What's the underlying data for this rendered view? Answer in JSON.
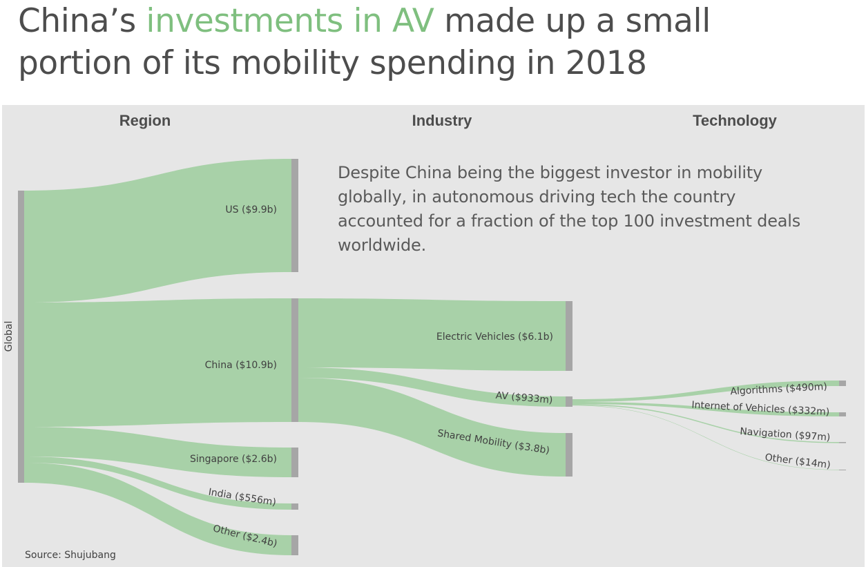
{
  "title": {
    "part1": "China’s ",
    "highlight": "investments in AV",
    "part2": " made up a small portion of its mobility spending in 2018"
  },
  "annotation": "Despite China being the biggest investor in mobility globally, in autonomous driving tech the country accounted for a fraction of the top 100 investment deals worldwide.",
  "source": "Source: Shujubang",
  "colors": {
    "link": "#a8d1a8",
    "node": "#a6a6a6",
    "highlight": "#7fbf7f",
    "panel": "#e6e6e6"
  },
  "chart_data": {
    "type": "sankey",
    "unit": "$",
    "columns": [
      "Region",
      "Industry",
      "Technology"
    ],
    "nodes": [
      {
        "id": "global",
        "label": "Global",
        "column": 0
      },
      {
        "id": "us",
        "label": "US ($9.9b)",
        "column": 1,
        "value_m": 9900
      },
      {
        "id": "china",
        "label": "China ($10.9b)",
        "column": 1,
        "value_m": 10900
      },
      {
        "id": "singapore",
        "label": "Singapore ($2.6b)",
        "column": 1,
        "value_m": 2600
      },
      {
        "id": "india",
        "label": "India ($556m)",
        "column": 1,
        "value_m": 556
      },
      {
        "id": "other_region",
        "label": "Other ($2.4b)",
        "column": 1,
        "value_m": 2400
      },
      {
        "id": "ev",
        "label": "Electric Vehicles ($6.1b)",
        "column": 2,
        "value_m": 6100
      },
      {
        "id": "av",
        "label": "AV  ($933m)",
        "column": 2,
        "value_m": 933
      },
      {
        "id": "shared",
        "label": "Shared Mobility ($3.8b)",
        "column": 2,
        "value_m": 3800
      },
      {
        "id": "algorithms",
        "label": "Algorithms ($490m)",
        "column": 3,
        "value_m": 490
      },
      {
        "id": "iov",
        "label": "Internet of Vehicles ($332m)",
        "column": 3,
        "value_m": 332
      },
      {
        "id": "navigation",
        "label": "Navigation ($97m)",
        "column": 3,
        "value_m": 97
      },
      {
        "id": "other_tech",
        "label": "Other ($14m)",
        "column": 3,
        "value_m": 14
      }
    ],
    "links": [
      {
        "source": "global",
        "target": "us",
        "value_m": 9900
      },
      {
        "source": "global",
        "target": "china",
        "value_m": 10900
      },
      {
        "source": "global",
        "target": "singapore",
        "value_m": 2600
      },
      {
        "source": "global",
        "target": "india",
        "value_m": 556
      },
      {
        "source": "global",
        "target": "other_region",
        "value_m": 2400
      },
      {
        "source": "china",
        "target": "ev",
        "value_m": 6100
      },
      {
        "source": "china",
        "target": "av",
        "value_m": 933
      },
      {
        "source": "china",
        "target": "shared",
        "value_m": 3800
      },
      {
        "source": "av",
        "target": "algorithms",
        "value_m": 490
      },
      {
        "source": "av",
        "target": "iov",
        "value_m": 332
      },
      {
        "source": "av",
        "target": "navigation",
        "value_m": 97
      },
      {
        "source": "av",
        "target": "other_tech",
        "value_m": 14
      }
    ]
  }
}
